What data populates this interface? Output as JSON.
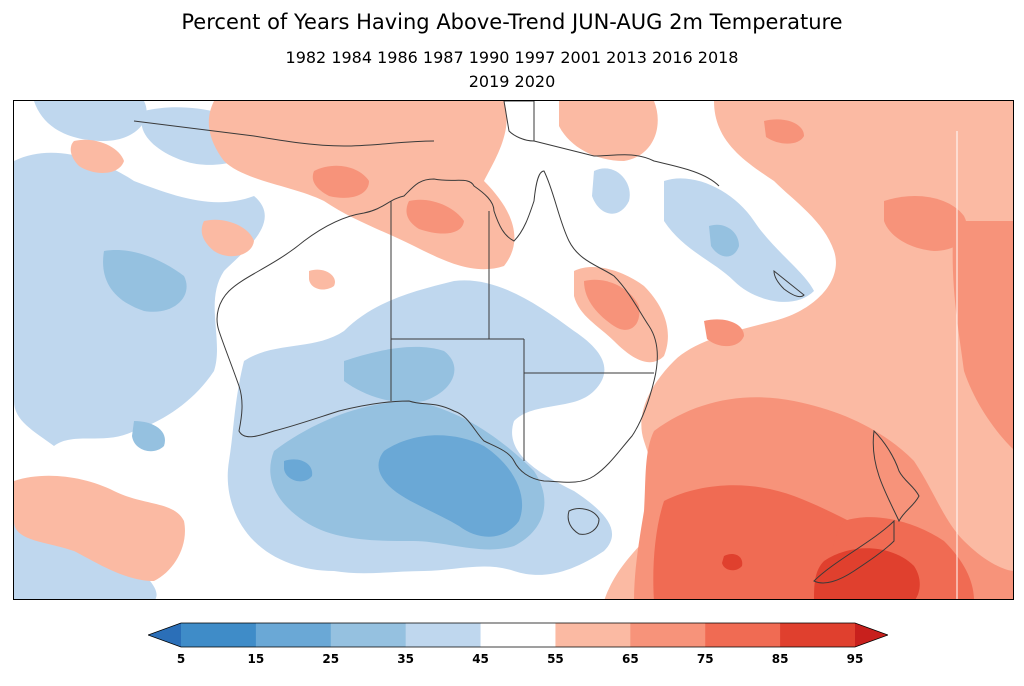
{
  "title": "Percent of Years Having Above-Trend JUN-AUG 2m Temperature",
  "subtitle_line1": "1982 1984 1986 1987 1990 1997 2001 2013 2016 2018",
  "subtitle_line2": "2019 2020",
  "colorbar": {
    "ticks": [
      "5",
      "15",
      "25",
      "35",
      "45",
      "55",
      "65",
      "75",
      "85",
      "95"
    ],
    "colors": [
      "#2b6fb8",
      "#3f8cc8",
      "#6aa8d6",
      "#95c1e0",
      "#bfd7ee",
      "#ffffff",
      "#fbbaa3",
      "#f7937a",
      "#f06b53",
      "#e0402e",
      "#c8201d"
    ]
  },
  "colors": {
    "frame": "#000000",
    "coastline": "#3a3a3a"
  }
}
